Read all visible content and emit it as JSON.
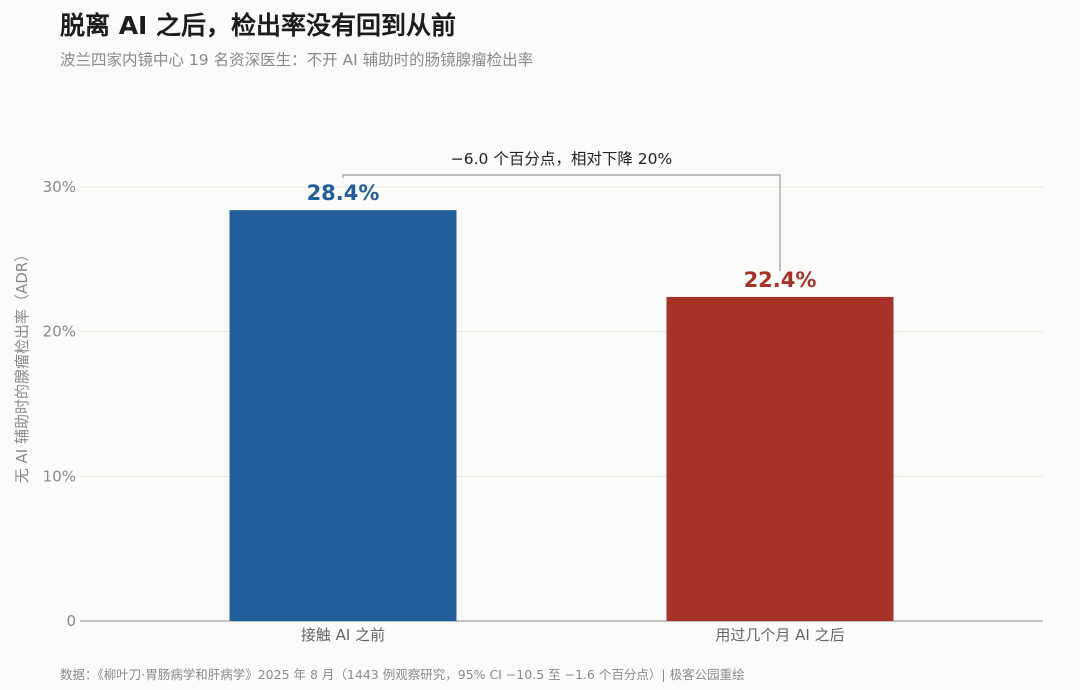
{
  "header": {
    "title": "脱离 AI 之后，检出率没有回到从前",
    "subtitle": "波兰四家内镜中心 19 名资深医生：不开 AI 辅助时的肠镜腺瘤检出率"
  },
  "footer": {
    "source": "数据：《柳叶刀·胃肠病学和肝病学》2025 年 8 月（1443 例观察研究，95% CI −10.5 至 −1.6 个百分点）| 极客公园重绘"
  },
  "chart_data": {
    "type": "bar",
    "title": "脱离 AI 之后，检出率没有回到从前",
    "subtitle": "波兰四家内镜中心 19 名资深医生：不开 AI 辅助时的肠镜腺瘤检出率",
    "categories": [
      "接触 AI 之前",
      "用过几个月 AI 之后"
    ],
    "values": [
      28.4,
      22.4
    ],
    "value_labels": [
      "28.4%",
      "22.4%"
    ],
    "colors": [
      "#215e9a",
      "#a63127"
    ],
    "ylabel": "无 AI 辅助时的腺瘤检出率（ADR）",
    "ylim": [
      0,
      30
    ],
    "yticks": [
      0,
      10,
      20,
      30
    ],
    "ytick_labels": [
      "0",
      "10%",
      "20%",
      "30%"
    ],
    "grid": true,
    "annotation": "−6.0 个百分点，相对下降 20%"
  }
}
